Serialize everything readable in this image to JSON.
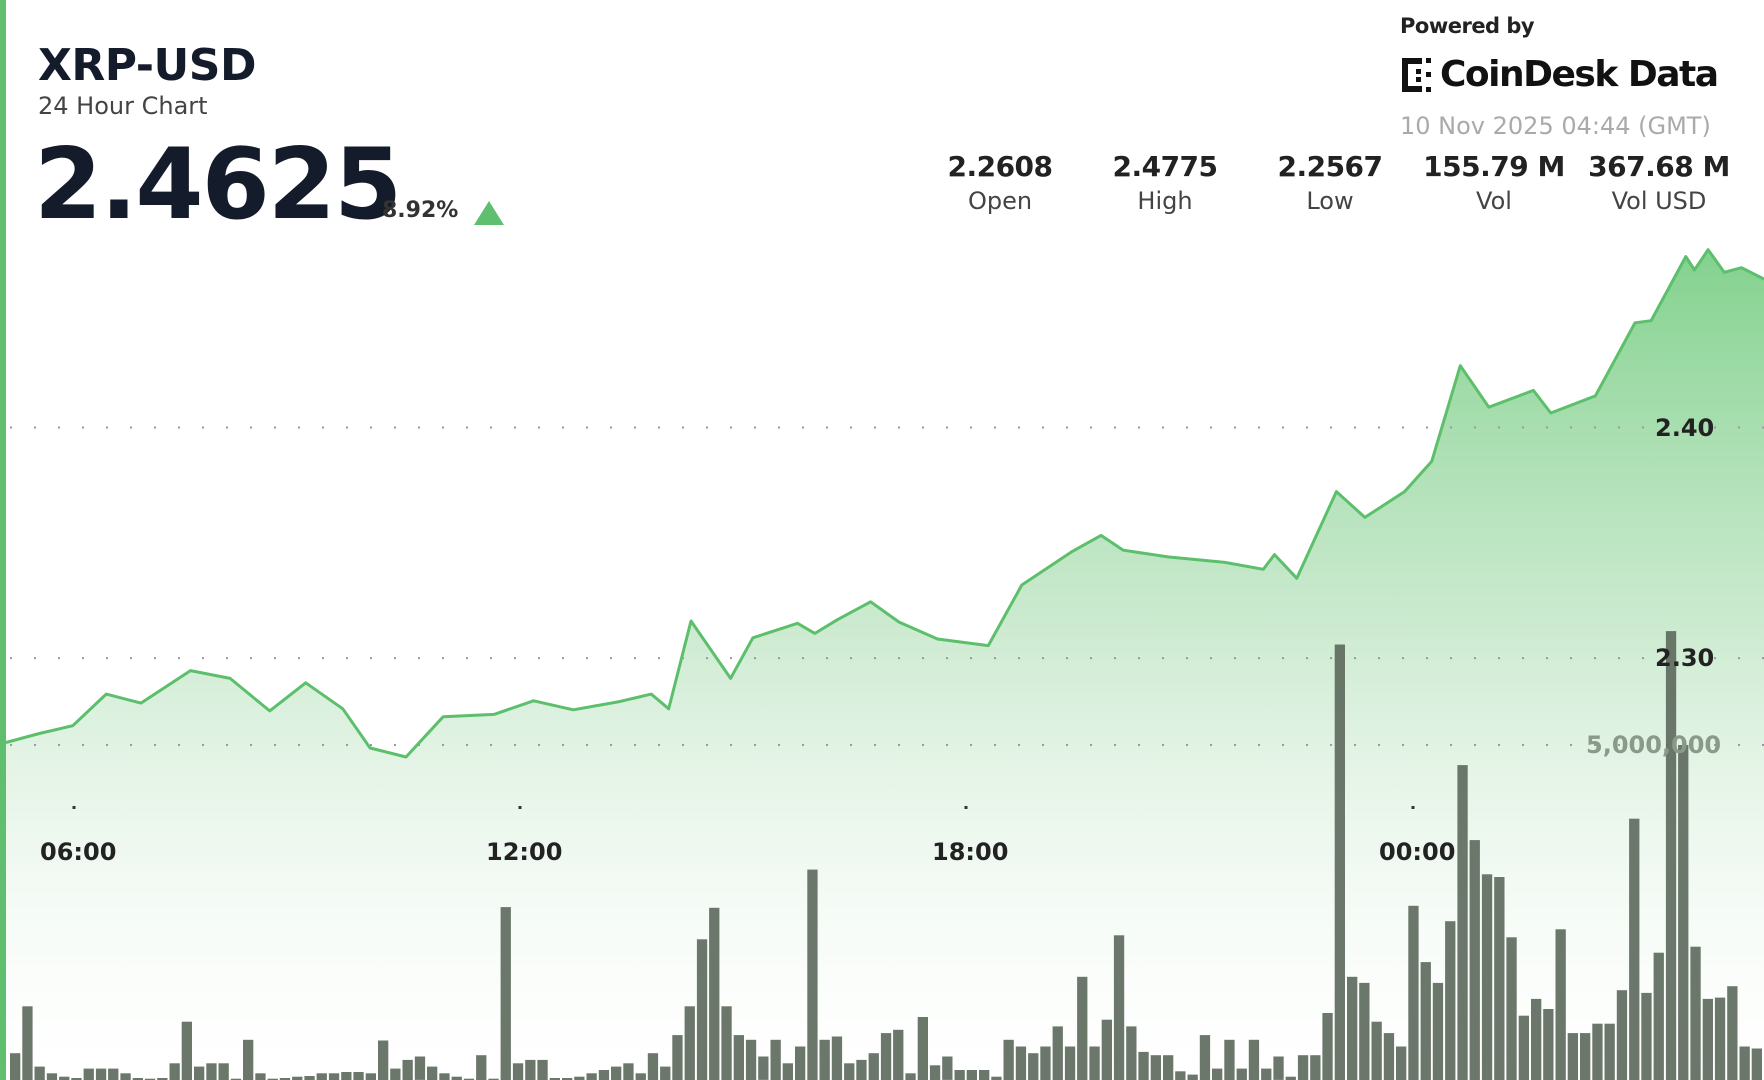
{
  "header": {
    "title": "XRP-USD",
    "subtitle": "24 Hour Chart",
    "price": "2.4625",
    "change_pct": "8.92%",
    "change_direction": "up",
    "change_icon": "triangle-up-icon"
  },
  "branding": {
    "powered_by": "Powered by",
    "logo_text": "CoinDesk Data",
    "timestamp": "10 Nov 2025 04:44 (GMT)"
  },
  "stats": [
    {
      "value": "2.2608",
      "label": "Open"
    },
    {
      "value": "2.4775",
      "label": "High"
    },
    {
      "value": "2.2567",
      "label": "Low"
    },
    {
      "value": "155.79 M",
      "label": "Vol"
    },
    {
      "value": "367.68 M",
      "label": "Vol USD"
    }
  ],
  "colors": {
    "accent": "#5fbf6e",
    "line": "#5cbf6b",
    "volume_bar": "#5e6b5e",
    "text": "#141b2a"
  },
  "chart_data": {
    "type": "line",
    "title": "",
    "xlabel": "",
    "ylabel": "",
    "grid": "dotted horizontal",
    "x_ticks": [
      "06:00",
      "12:00",
      "18:00",
      "00:00"
    ],
    "y_ticks": [
      "2.40",
      "2.30"
    ],
    "volume_ticks": [
      "5,000,000"
    ],
    "volume_tick_values": [
      5000000
    ],
    "ylim": [
      2.2,
      2.48
    ],
    "price_series": {
      "x": [
        "05:05",
        "05:32",
        "05:59",
        "06:26",
        "06:54",
        "07:34",
        "08:06",
        "08:38",
        "09:07",
        "09:37",
        "09:59",
        "10:28",
        "10:58",
        "11:39",
        "12:11",
        "12:43",
        "13:19",
        "13:46",
        "14:00",
        "14:18",
        "14:50",
        "15:08",
        "15:44",
        "15:58",
        "16:16",
        "16:43",
        "17:06",
        "17:37",
        "18:18",
        "18:45",
        "19:26",
        "19:49",
        "20:07",
        "20:43",
        "21:29",
        "22:00",
        "22:09",
        "22:27",
        "22:59",
        "23:22",
        "23:54",
        "00:16",
        "00:39",
        "01:02",
        "01:38",
        "01:52",
        "02:28",
        "03:00",
        "03:13",
        "03:41",
        "03:48",
        "03:59",
        "04:12",
        "04:26",
        "04:39"
      ],
      "y": [
        2.2634,
        2.2673,
        2.2707,
        2.2844,
        2.2805,
        2.2946,
        2.2912,
        2.2771,
        2.2893,
        2.278,
        2.261,
        2.2571,
        2.2746,
        2.2756,
        2.2815,
        2.2776,
        2.281,
        2.2844,
        2.278,
        2.3161,
        2.2912,
        2.3088,
        2.3151,
        2.3107,
        2.3166,
        2.3244,
        2.3156,
        2.3083,
        2.3054,
        2.3317,
        2.3463,
        2.3532,
        2.3468,
        2.3439,
        2.3415,
        2.3385,
        2.3449,
        2.3346,
        2.3722,
        2.361,
        2.3722,
        2.3854,
        2.4268,
        2.4088,
        2.4161,
        2.4063,
        2.4137,
        2.4454,
        2.4463,
        2.4741,
        2.4683,
        2.4771,
        2.4673,
        2.4693,
        2.4644
      ]
    },
    "volume_series_millions": [
      0.4,
      1.1,
      0.2,
      0.1,
      0.05,
      0.03,
      0.17,
      0.17,
      0.17,
      0.1,
      0.03,
      0.02,
      0.03,
      0.25,
      0.87,
      0.2,
      0.25,
      0.25,
      0.02,
      0.6,
      0.1,
      0.02,
      0.03,
      0.05,
      0.06,
      0.1,
      0.1,
      0.12,
      0.12,
      0.1,
      0.59,
      0.17,
      0.3,
      0.35,
      0.2,
      0.1,
      0.05,
      0.02,
      0.37,
      0.02,
      2.58,
      0.25,
      0.3,
      0.3,
      0.03,
      0.03,
      0.05,
      0.1,
      0.15,
      0.2,
      0.25,
      0.1,
      0.4,
      0.2,
      0.67,
      1.1,
      2.1,
      2.57,
      1.1,
      0.67,
      0.6,
      0.35,
      0.6,
      0.25,
      0.5,
      3.14,
      0.6,
      0.65,
      0.25,
      0.3,
      0.4,
      0.7,
      0.75,
      0.1,
      0.94,
      0.22,
      0.35,
      0.15,
      0.15,
      0.15,
      0.05,
      0.6,
      0.5,
      0.4,
      0.5,
      0.8,
      0.5,
      1.54,
      0.5,
      0.9,
      2.16,
      0.8,
      0.42,
      0.37,
      0.37,
      0.13,
      0.08,
      0.67,
      0.17,
      0.6,
      0.17,
      0.6,
      0.17,
      0.35,
      0.05,
      0.37,
      0.37,
      1.0,
      6.5,
      1.54,
      1.45,
      0.87,
      0.7,
      0.5,
      2.6,
      1.76,
      1.45,
      2.37,
      4.7,
      3.58,
      3.07,
      3.03,
      2.13,
      0.96,
      1.21,
      1.06,
      2.25,
      0.7,
      0.7,
      0.84,
      0.84,
      1.34,
      3.9,
      1.3,
      1.9,
      6.7,
      5.0,
      1.99,
      1.21,
      1.23,
      1.4,
      0.5,
      0.47
    ]
  }
}
